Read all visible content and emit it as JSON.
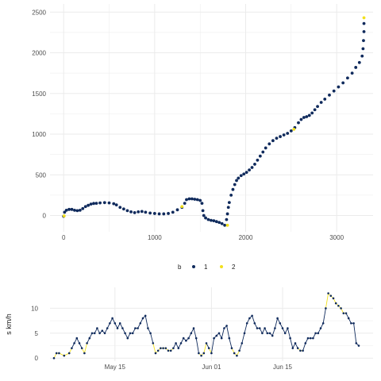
{
  "palette": {
    "1": "#0f2a5c",
    "2": "#f2e01c",
    "grid": "#ebebeb"
  },
  "chart_data": [
    {
      "type": "scatter",
      "title": "",
      "xlabel": "",
      "ylabel": "",
      "xlim": [
        -150,
        3400
      ],
      "ylim": [
        -200,
        2600
      ],
      "x_ticks": [
        0,
        1000,
        2000,
        3000
      ],
      "x_tick_labels": [
        "0",
        "1000",
        "2000",
        "3000"
      ],
      "y_ticks": [
        0,
        500,
        1000,
        1500,
        2000,
        2500
      ],
      "y_tick_labels": [
        "0",
        "500",
        "1000",
        "1500",
        "2000",
        "2500"
      ],
      "grid": true,
      "legend": {
        "title": "b",
        "placement": "bottom",
        "entries": [
          "1",
          "2"
        ]
      },
      "series": [
        {
          "name": "1",
          "points": [
            [
              0,
              -10
            ],
            [
              10,
              40
            ],
            [
              30,
              65
            ],
            [
              60,
              75
            ],
            [
              90,
              75
            ],
            [
              120,
              65
            ],
            [
              150,
              60
            ],
            [
              180,
              65
            ],
            [
              210,
              85
            ],
            [
              240,
              110
            ],
            [
              270,
              125
            ],
            [
              300,
              140
            ],
            [
              330,
              148
            ],
            [
              360,
              150
            ],
            [
              400,
              155
            ],
            [
              450,
              158
            ],
            [
              500,
              155
            ],
            [
              550,
              145
            ],
            [
              580,
              130
            ],
            [
              620,
              100
            ],
            [
              660,
              80
            ],
            [
              700,
              60
            ],
            [
              740,
              45
            ],
            [
              780,
              35
            ],
            [
              820,
              45
            ],
            [
              860,
              50
            ],
            [
              900,
              40
            ],
            [
              950,
              30
            ],
            [
              1000,
              25
            ],
            [
              1050,
              20
            ],
            [
              1100,
              20
            ],
            [
              1150,
              25
            ],
            [
              1200,
              40
            ],
            [
              1250,
              70
            ],
            [
              1300,
              100
            ],
            [
              1330,
              150
            ],
            [
              1350,
              195
            ],
            [
              1380,
              205
            ],
            [
              1410,
              205
            ],
            [
              1440,
              200
            ],
            [
              1470,
              195
            ],
            [
              1500,
              185
            ],
            [
              1520,
              150
            ],
            [
              1530,
              60
            ],
            [
              1540,
              0
            ],
            [
              1560,
              -30
            ],
            [
              1590,
              -50
            ],
            [
              1620,
              -60
            ],
            [
              1650,
              -65
            ],
            [
              1680,
              -75
            ],
            [
              1710,
              -85
            ],
            [
              1740,
              -100
            ],
            [
              1770,
              -120
            ],
            [
              1790,
              -50
            ],
            [
              1800,
              20
            ],
            [
              1810,
              100
            ],
            [
              1820,
              160
            ],
            [
              1840,
              250
            ],
            [
              1860,
              320
            ],
            [
              1880,
              380
            ],
            [
              1900,
              430
            ],
            [
              1920,
              460
            ],
            [
              1950,
              490
            ],
            [
              1980,
              510
            ],
            [
              2010,
              530
            ],
            [
              2040,
              560
            ],
            [
              2070,
              590
            ],
            [
              2100,
              630
            ],
            [
              2130,
              680
            ],
            [
              2160,
              730
            ],
            [
              2190,
              780
            ],
            [
              2220,
              830
            ],
            [
              2260,
              880
            ],
            [
              2300,
              920
            ],
            [
              2340,
              950
            ],
            [
              2380,
              970
            ],
            [
              2420,
              990
            ],
            [
              2460,
              1010
            ],
            [
              2500,
              1040
            ],
            [
              2540,
              1080
            ],
            [
              2580,
              1140
            ],
            [
              2610,
              1180
            ],
            [
              2640,
              1205
            ],
            [
              2670,
              1215
            ],
            [
              2700,
              1230
            ],
            [
              2730,
              1260
            ],
            [
              2760,
              1300
            ],
            [
              2790,
              1340
            ],
            [
              2830,
              1390
            ],
            [
              2870,
              1430
            ],
            [
              2920,
              1480
            ],
            [
              2970,
              1530
            ],
            [
              3020,
              1580
            ],
            [
              3070,
              1630
            ],
            [
              3120,
              1690
            ],
            [
              3170,
              1750
            ],
            [
              3210,
              1820
            ],
            [
              3250,
              1880
            ],
            [
              3280,
              1960
            ],
            [
              3290,
              2050
            ],
            [
              3295,
              2150
            ],
            [
              3300,
              2260
            ],
            [
              3300,
              2360
            ]
          ]
        },
        {
          "name": "2",
          "points": [
            [
              5,
              -5
            ],
            [
              1300,
              110
            ],
            [
              1800,
              -120
            ],
            [
              2530,
              1060
            ],
            [
              3300,
              2430
            ]
          ]
        }
      ]
    },
    {
      "type": "line",
      "title": "",
      "xlabel": "",
      "ylabel": "s km/h",
      "xlim": [
        0,
        60
      ],
      "ylim": [
        -0.6,
        14.2
      ],
      "y_ticks": [
        0,
        5,
        10
      ],
      "y_tick_labels": [
        "0",
        "5",
        "10"
      ],
      "x_ticks": [
        12,
        31,
        45
      ],
      "x_tick_labels": [
        "May 15",
        "Jun 01",
        "Jun 15"
      ],
      "grid": true,
      "series": [
        {
          "name": "1",
          "points": [
            [
              0,
              0
            ],
            [
              0.5,
              1
            ],
            [
              1,
              1
            ],
            [
              2,
              0.5
            ],
            [
              3,
              1
            ],
            [
              3.5,
              2
            ],
            [
              4,
              3
            ],
            [
              4.5,
              4
            ],
            [
              5,
              3
            ],
            [
              5.5,
              2
            ],
            [
              6,
              1
            ],
            [
              6.5,
              3
            ],
            [
              7,
              4
            ],
            [
              7.5,
              5
            ],
            [
              8,
              5
            ],
            [
              8.5,
              6
            ],
            [
              9,
              5
            ],
            [
              9.5,
              5.5
            ],
            [
              10,
              5
            ],
            [
              10.5,
              6
            ],
            [
              11,
              7
            ],
            [
              11.5,
              8
            ],
            [
              12,
              7
            ],
            [
              12.5,
              6
            ],
            [
              13,
              7
            ],
            [
              13.5,
              6
            ],
            [
              14,
              5
            ],
            [
              14.5,
              4
            ],
            [
              15,
              5
            ],
            [
              15.5,
              5
            ],
            [
              16,
              6
            ],
            [
              16.5,
              6
            ],
            [
              17,
              7
            ],
            [
              17.5,
              8
            ],
            [
              18,
              8.5
            ],
            [
              18.5,
              6
            ],
            [
              19,
              5
            ],
            [
              19.5,
              3
            ],
            [
              20,
              1
            ],
            [
              20.5,
              1.5
            ],
            [
              21,
              2
            ],
            [
              21.5,
              2
            ],
            [
              22,
              2
            ],
            [
              22.5,
              1.5
            ],
            [
              23,
              1.5
            ],
            [
              23.5,
              2
            ],
            [
              24,
              3
            ],
            [
              24.5,
              2
            ],
            [
              25,
              3
            ],
            [
              25.5,
              4
            ],
            [
              26,
              3.5
            ],
            [
              26.5,
              4
            ],
            [
              27,
              5
            ],
            [
              27.5,
              6
            ],
            [
              28,
              4
            ],
            [
              28.5,
              1
            ],
            [
              29,
              0.5
            ],
            [
              29.5,
              1
            ],
            [
              30,
              3
            ],
            [
              30.5,
              2
            ],
            [
              31,
              1
            ],
            [
              31.5,
              4
            ],
            [
              32,
              4.5
            ],
            [
              32.5,
              5
            ],
            [
              33,
              4
            ],
            [
              33.5,
              6
            ],
            [
              34,
              6.5
            ],
            [
              34.5,
              4
            ],
            [
              35,
              2
            ],
            [
              35.5,
              1
            ],
            [
              36,
              0.5
            ],
            [
              36.5,
              1.5
            ],
            [
              37,
              3
            ],
            [
              37.5,
              5
            ],
            [
              38,
              7
            ],
            [
              38.5,
              8
            ],
            [
              39,
              8.5
            ],
            [
              39.5,
              7
            ],
            [
              40,
              6
            ],
            [
              40.5,
              6
            ],
            [
              41,
              5
            ],
            [
              41.5,
              6
            ],
            [
              42,
              5
            ],
            [
              42.5,
              5
            ],
            [
              43,
              4.5
            ],
            [
              43.5,
              6
            ],
            [
              44,
              8
            ],
            [
              44.5,
              7
            ],
            [
              45,
              6
            ],
            [
              45.5,
              5
            ],
            [
              46,
              6
            ],
            [
              46.5,
              4
            ],
            [
              47,
              2
            ],
            [
              47.5,
              3
            ],
            [
              48,
              2
            ],
            [
              48.5,
              1.5
            ],
            [
              49,
              1.5
            ],
            [
              49.5,
              3
            ],
            [
              50,
              4
            ],
            [
              50.5,
              4
            ],
            [
              51,
              4
            ],
            [
              51.5,
              5
            ],
            [
              52,
              5
            ],
            [
              52.5,
              6
            ],
            [
              53,
              7
            ],
            [
              53.5,
              10
            ],
            [
              54,
              13
            ],
            [
              54.5,
              12.5
            ],
            [
              55,
              12
            ],
            [
              55.5,
              11
            ],
            [
              56,
              10.5
            ],
            [
              56.5,
              10
            ],
            [
              57,
              9
            ],
            [
              57.5,
              9
            ],
            [
              58,
              8
            ],
            [
              58.5,
              7
            ],
            [
              59,
              7
            ],
            [
              59.5,
              3
            ],
            [
              60,
              2.5
            ]
          ]
        }
      ]
    }
  ]
}
